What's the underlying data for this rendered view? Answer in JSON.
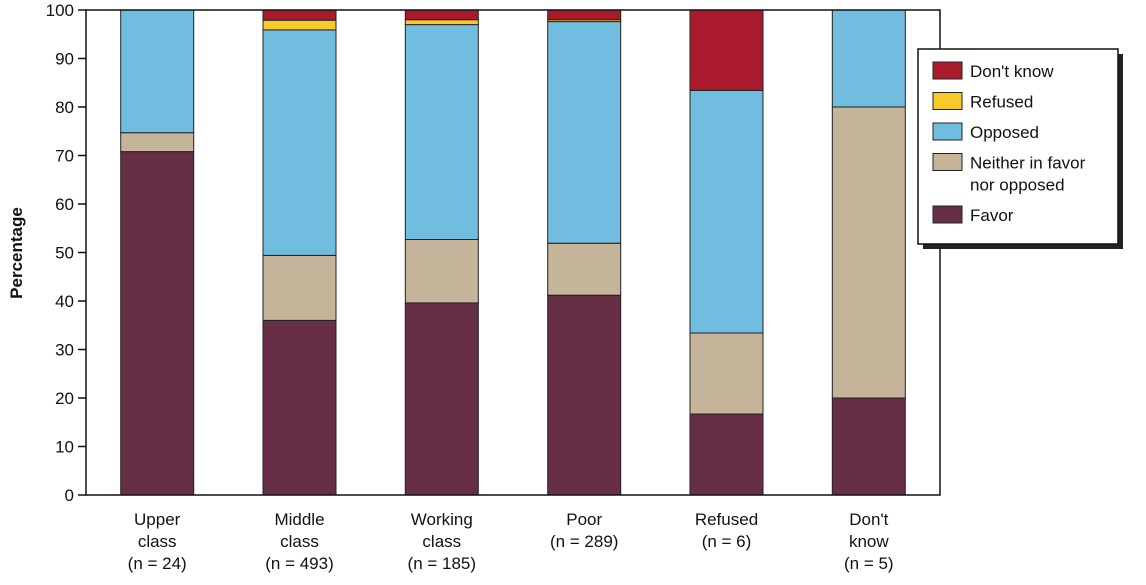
{
  "chart_data": {
    "type": "bar",
    "stacked": true,
    "ylabel": "Percentage",
    "xlabel": "",
    "ylim": [
      0,
      100
    ],
    "yticks": [
      0,
      10,
      20,
      30,
      40,
      50,
      60,
      70,
      80,
      90,
      100
    ],
    "categories": [
      [
        "Upper",
        "class",
        "(n = 24)"
      ],
      [
        "Middle",
        "class",
        "(n = 493)"
      ],
      [
        "Working",
        "class",
        "(n = 185)"
      ],
      [
        "Poor",
        "(n = 289)"
      ],
      [
        "Refused",
        "(n = 6)"
      ],
      [
        "Don't",
        "know",
        "(n = 5)"
      ]
    ],
    "series": [
      {
        "name": "Favor",
        "color": "#672e48",
        "values": [
          70.8,
          36.0,
          39.6,
          41.2,
          16.7,
          20.0
        ]
      },
      {
        "name": "Neither in favor nor opposed",
        "color": "#c4b49a",
        "values": [
          3.9,
          13.4,
          13.1,
          10.7,
          16.7,
          60.0
        ]
      },
      {
        "name": "Opposed",
        "color": "#71bde0",
        "values": [
          25.3,
          46.5,
          44.3,
          45.7,
          50.0,
          20.0
        ]
      },
      {
        "name": "Refused",
        "color": "#f9c92a",
        "values": [
          0.0,
          2.0,
          1.0,
          0.4,
          0.0,
          0.0
        ]
      },
      {
        "name": "Don't know",
        "color": "#a91a2d",
        "values": [
          0.0,
          2.1,
          2.0,
          2.0,
          16.6,
          0.0
        ]
      }
    ],
    "legend": {
      "placement": "right",
      "entries": [
        {
          "lines": [
            "Don't know"
          ],
          "color": "#a91a2d"
        },
        {
          "lines": [
            "Refused"
          ],
          "color": "#f9c92a"
        },
        {
          "lines": [
            "Opposed"
          ],
          "color": "#71bde0"
        },
        {
          "lines": [
            "Neither in favor",
            "nor opposed"
          ],
          "color": "#c4b49a"
        },
        {
          "lines": [
            "Favor"
          ],
          "color": "#672e48"
        }
      ]
    },
    "grid": false
  }
}
